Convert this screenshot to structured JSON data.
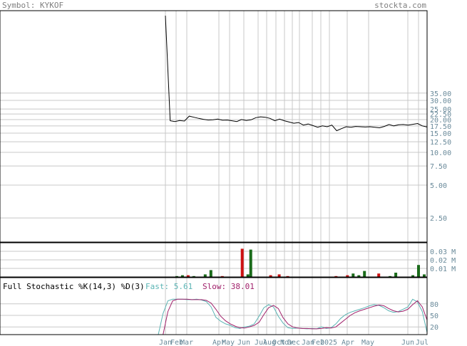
{
  "header": {
    "symbol_label": "Symbol: KYKOF",
    "site": "stockta.com"
  },
  "colors": {
    "background": "#ffffff",
    "frame": "#000000",
    "grid": "#c8c8c8",
    "price_line": "#000000",
    "header_text": "#7f7f7f",
    "axis_text": "#6a8a9a",
    "volume_up": "#1a6b1a",
    "volume_down": "#cc1111",
    "stoch_fast": "#5ab4b4",
    "stoch_slow": "#a0206a",
    "stoch_title": "#000000"
  },
  "chart_data": [
    {
      "type": "line",
      "panel": "price",
      "scale": "log",
      "ylim": [
        1.5,
        200
      ],
      "y_ticks": [
        {
          "value": 35.0,
          "label": "35.00"
        },
        {
          "value": 30.0,
          "label": "30.00"
        },
        {
          "value": 25.0,
          "label": "25.00"
        },
        {
          "value": 22.5,
          "label": "22.50"
        },
        {
          "value": 20.0,
          "label": "20.00"
        },
        {
          "value": 17.5,
          "label": "17.50"
        },
        {
          "value": 15.0,
          "label": "15.00"
        },
        {
          "value": 12.5,
          "label": "12.50"
        },
        {
          "value": 10.0,
          "label": "10.00"
        },
        {
          "value": 7.5,
          "label": "7.50"
        },
        {
          "value": 5.0,
          "label": "5.00"
        },
        {
          "value": 2.5,
          "label": "2.50"
        }
      ],
      "x_ticks": [
        "Jan",
        "Feb",
        "Mar",
        "Apr",
        "May",
        "Jun",
        "Jul",
        "Aug",
        "Oct",
        "Nov",
        "Dec",
        "Jan",
        "Feb",
        "2025",
        "Apr",
        "May",
        "Jun",
        "Jul"
      ],
      "series": [
        {
          "values": [
            180,
            19.5,
            19.2,
            19.6,
            19.4,
            21.5,
            21.0,
            20.5,
            20.1,
            19.8,
            19.9,
            20.2,
            19.7,
            19.8,
            19.5,
            19.2,
            20.0,
            19.6,
            19.9,
            20.8,
            21.2,
            21.0,
            20.5,
            19.5,
            20.2,
            19.5,
            19.0,
            18.5,
            18.8,
            17.8,
            18.2,
            17.6,
            17.0,
            17.5,
            17.2,
            17.8,
            15.8,
            16.5,
            17.2,
            17.0,
            17.3,
            17.2,
            17.1,
            17.2,
            17.0,
            16.8,
            17.3,
            18.0,
            17.5,
            17.9,
            18.0,
            17.8,
            18.1,
            18.4,
            17.5,
            17.1
          ]
        }
      ]
    },
    {
      "type": "bar",
      "panel": "volume",
      "y_ticks": [
        {
          "value": 0.03,
          "label": "0.03 M"
        },
        {
          "value": 0.02,
          "label": "0.02 M"
        },
        {
          "value": 0.01,
          "label": "0.01 M"
        }
      ],
      "ylim": [
        0,
        0.04
      ],
      "bars": [
        {
          "i": 4,
          "v": 0.001,
          "d": "up"
        },
        {
          "i": 6,
          "v": 0.002,
          "d": "up"
        },
        {
          "i": 8,
          "v": 0.002,
          "d": "down"
        },
        {
          "i": 10,
          "v": 0.001,
          "d": "up"
        },
        {
          "i": 14,
          "v": 0.003,
          "d": "up"
        },
        {
          "i": 16,
          "v": 0.008,
          "d": "up"
        },
        {
          "i": 20,
          "v": 0.001,
          "d": "down"
        },
        {
          "i": 27,
          "v": 0.033,
          "d": "down"
        },
        {
          "i": 29,
          "v": 0.003,
          "d": "up"
        },
        {
          "i": 30,
          "v": 0.032,
          "d": "up"
        },
        {
          "i": 37,
          "v": 0.002,
          "d": "down"
        },
        {
          "i": 40,
          "v": 0.003,
          "d": "down"
        },
        {
          "i": 43,
          "v": 0.001,
          "d": "down"
        },
        {
          "i": 60,
          "v": 0.001,
          "d": "down"
        },
        {
          "i": 64,
          "v": 0.002,
          "d": "down"
        },
        {
          "i": 66,
          "v": 0.004,
          "d": "up"
        },
        {
          "i": 68,
          "v": 0.002,
          "d": "up"
        },
        {
          "i": 70,
          "v": 0.007,
          "d": "up"
        },
        {
          "i": 75,
          "v": 0.004,
          "d": "down"
        },
        {
          "i": 79,
          "v": 0.001,
          "d": "up"
        },
        {
          "i": 81,
          "v": 0.005,
          "d": "up"
        },
        {
          "i": 87,
          "v": 0.002,
          "d": "up"
        },
        {
          "i": 89,
          "v": 0.014,
          "d": "up"
        },
        {
          "i": 91,
          "v": 0.003,
          "d": "up"
        }
      ]
    },
    {
      "type": "line",
      "panel": "stochastic",
      "title": "Full Stochastic %K(14,3) %D(3)",
      "fast_label": "Fast: 5.61",
      "slow_label": "Slow: 38.01",
      "ylim": [
        0,
        100
      ],
      "y_ticks": [
        {
          "value": 80,
          "label": "80"
        },
        {
          "value": 50,
          "label": "50"
        },
        {
          "value": 20,
          "label": "20"
        }
      ],
      "series": [
        {
          "name": "Fast",
          "values": [
            0,
            55,
            88,
            92,
            92,
            92,
            91,
            91,
            92,
            90,
            86,
            72,
            45,
            35,
            28,
            24,
            18,
            16,
            20,
            22,
            28,
            48,
            70,
            78,
            72,
            48,
            30,
            18,
            16,
            17,
            16,
            15,
            16,
            15,
            20,
            16,
            18,
            28,
            42,
            52,
            58,
            62,
            66,
            70,
            75,
            78,
            76,
            70,
            62,
            58,
            60,
            66,
            72,
            92,
            85,
            60,
            5.61
          ]
        },
        {
          "name": "Slow",
          "values": [
            0,
            0,
            60,
            88,
            92,
            92,
            92,
            91,
            91,
            91,
            89,
            82,
            66,
            48,
            36,
            28,
            22,
            18,
            17,
            20,
            24,
            32,
            52,
            70,
            76,
            68,
            44,
            28,
            20,
            17,
            16,
            16,
            15,
            15,
            16,
            18,
            17,
            20,
            30,
            40,
            50,
            57,
            62,
            66,
            70,
            74,
            77,
            75,
            68,
            62,
            59,
            61,
            66,
            78,
            88,
            72,
            38.01
          ]
        }
      ]
    }
  ]
}
